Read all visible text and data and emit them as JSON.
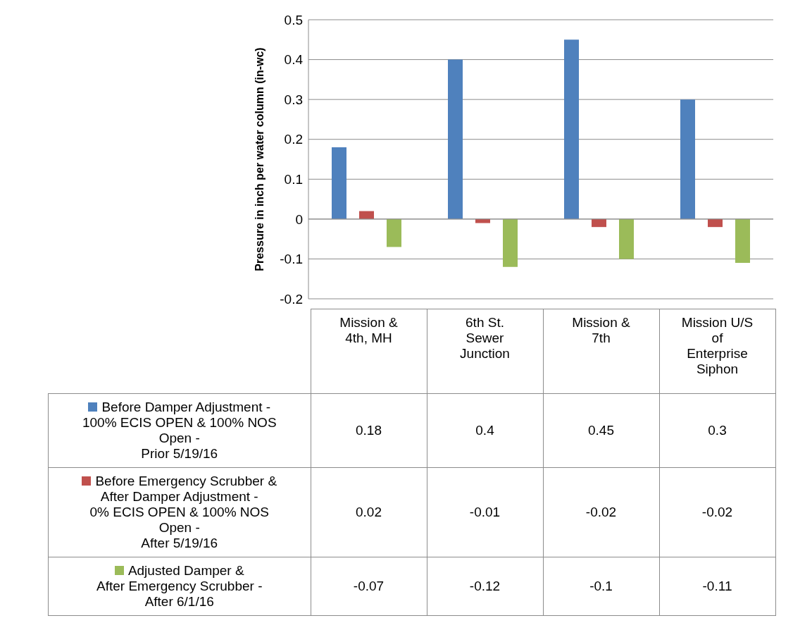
{
  "chart_data": {
    "type": "bar",
    "ylabel": "Pressure in inch per water column (in-wc)",
    "categories": [
      "Mission &\n4th, MH",
      "6th St.\nSewer\nJunction",
      "Mission &\n7th",
      "Mission U/S\nof\nEnterprise\nSiphon"
    ],
    "series": [
      {
        "name": "Before Damper Adjustment -\n100% ECIS OPEN & 100% NOS\nOpen -\nPrior 5/19/16",
        "color": "#4f81bd",
        "values": [
          0.18,
          0.4,
          0.45,
          0.3
        ]
      },
      {
        "name": "Before Emergency Scrubber &\nAfter Damper Adjustment -\n0% ECIS OPEN & 100% NOS\nOpen -\nAfter 5/19/16",
        "color": "#c0504d",
        "values": [
          0.02,
          -0.01,
          -0.02,
          -0.02
        ]
      },
      {
        "name": "Adjusted Damper &\nAfter Emergency Scrubber -\nAfter 6/1/16",
        "color": "#9bbb59",
        "values": [
          -0.07,
          -0.12,
          -0.1,
          -0.11
        ]
      }
    ],
    "ylim": [
      -0.2,
      0.5
    ],
    "yticks": [
      -0.2,
      -0.1,
      0,
      0.1,
      0.2,
      0.3,
      0.4,
      0.5
    ],
    "grid": "y",
    "legend": "bottom",
    "data_labels": true
  }
}
